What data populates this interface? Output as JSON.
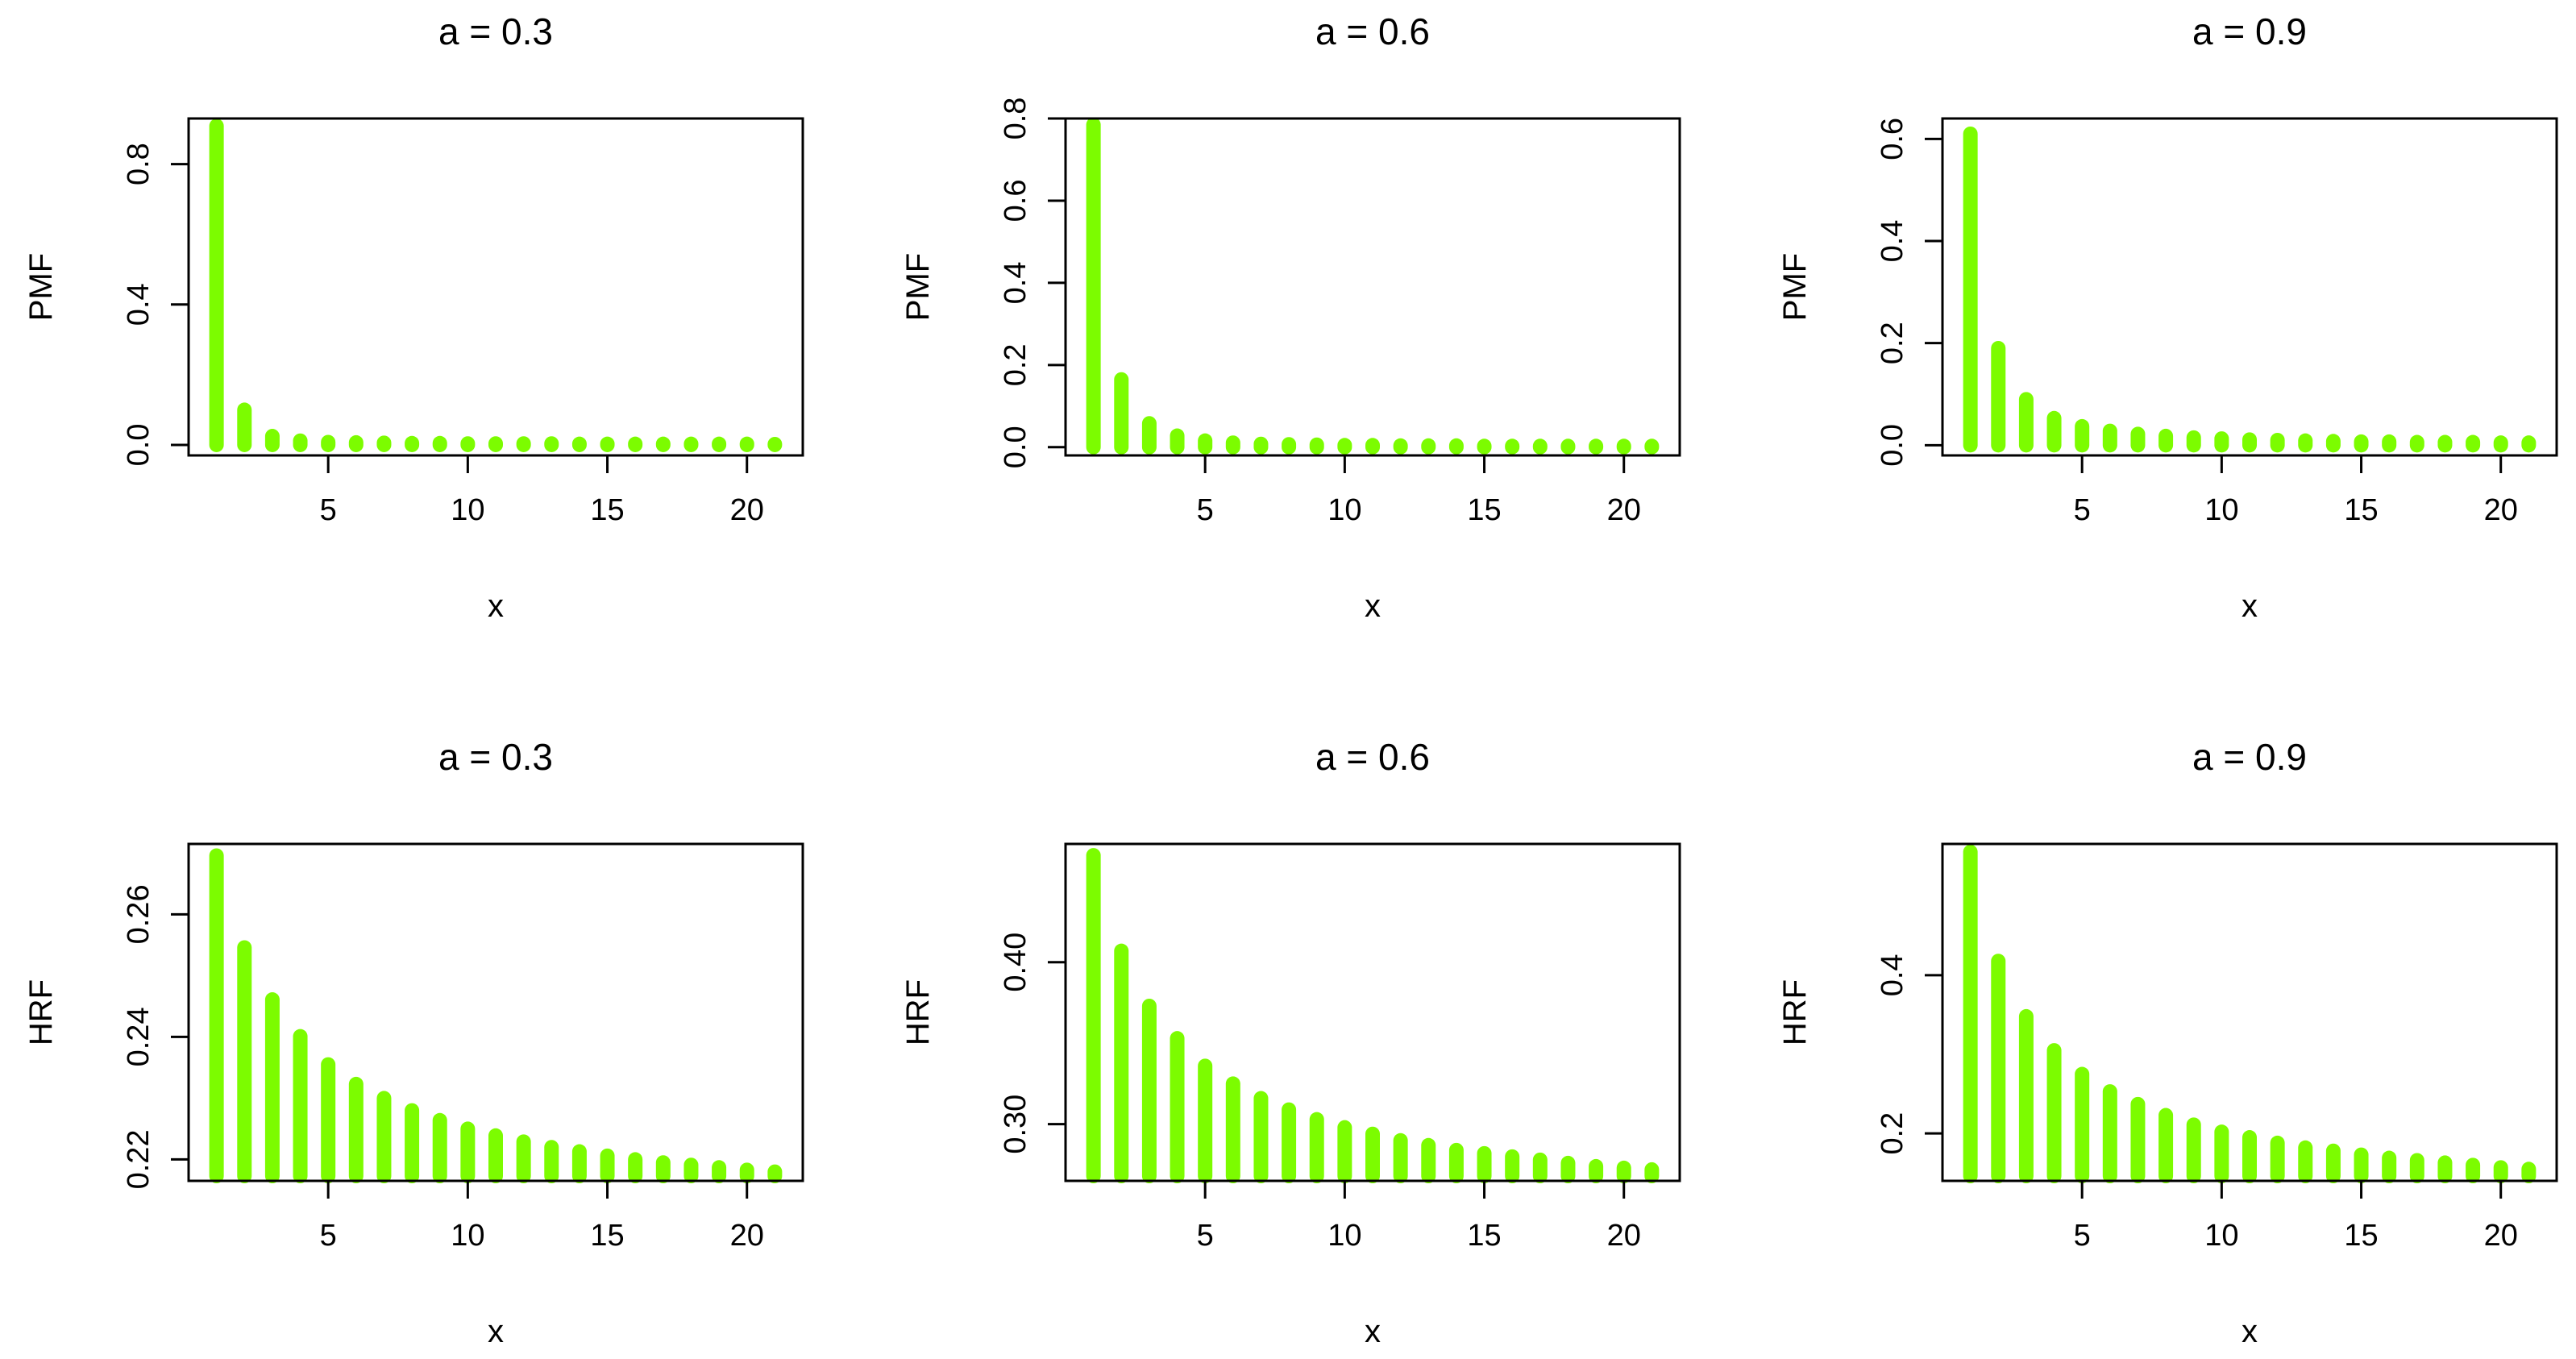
{
  "style": {
    "bar_color": "#7cfc00",
    "axis_color": "#000000",
    "background": "#ffffff"
  },
  "chart_data": [
    {
      "type": "bar",
      "title": "a = 0.3",
      "xlabel": "x",
      "ylabel": "PMF",
      "x": [
        1,
        2,
        3,
        4,
        5,
        6,
        7,
        8,
        9,
        10,
        11,
        12,
        13,
        14,
        15,
        16,
        17,
        18,
        19,
        20,
        21
      ],
      "values": [
        0.909,
        0.1,
        0.025,
        0.012,
        0.008,
        0.007,
        0.006,
        0.005,
        0.005,
        0.004,
        0.004,
        0.004,
        0.004,
        0.003,
        0.003,
        0.003,
        0.003,
        0.003,
        0.003,
        0.003,
        0.002
      ],
      "xticks": [
        5,
        10,
        15,
        20
      ],
      "yticks": [
        0.0,
        0.4,
        0.8
      ],
      "ytick_labels": [
        "0.0",
        "0.4",
        "0.8"
      ],
      "xlim": [
        0,
        22
      ],
      "ylim": [
        -0.03,
        0.93
      ]
    },
    {
      "type": "bar",
      "title": "a = 0.6",
      "xlabel": "x",
      "ylabel": "PMF",
      "x": [
        1,
        2,
        3,
        4,
        5,
        6,
        7,
        8,
        9,
        10,
        11,
        12,
        13,
        14,
        15,
        16,
        17,
        18,
        19,
        20,
        21
      ],
      "values": [
        0.785,
        0.165,
        0.058,
        0.028,
        0.016,
        0.011,
        0.008,
        0.007,
        0.006,
        0.005,
        0.005,
        0.004,
        0.004,
        0.004,
        0.003,
        0.003,
        0.003,
        0.003,
        0.003,
        0.003,
        0.003
      ],
      "xticks": [
        5,
        10,
        15,
        20
      ],
      "yticks": [
        0.0,
        0.2,
        0.4,
        0.6,
        0.8
      ],
      "ytick_labels": [
        "0.0",
        "0.2",
        "0.4",
        "0.6",
        "0.8"
      ],
      "xlim": [
        0,
        22
      ],
      "ylim": [
        -0.02,
        0.8
      ]
    },
    {
      "type": "bar",
      "title": "a = 0.9",
      "xlabel": "x",
      "ylabel": "PMF",
      "x": [
        1,
        2,
        3,
        4,
        5,
        6,
        7,
        8,
        9,
        10,
        11,
        12,
        13,
        14,
        15,
        16,
        17,
        18,
        19,
        20,
        21
      ],
      "values": [
        0.61,
        0.19,
        0.09,
        0.053,
        0.037,
        0.028,
        0.022,
        0.018,
        0.015,
        0.013,
        0.011,
        0.01,
        0.009,
        0.008,
        0.007,
        0.007,
        0.006,
        0.006,
        0.006,
        0.005,
        0.005
      ],
      "xticks": [
        5,
        10,
        15,
        20
      ],
      "yticks": [
        0.0,
        0.2,
        0.4,
        0.6
      ],
      "ytick_labels": [
        "0.0",
        "0.2",
        "0.4",
        "0.6"
      ],
      "xlim": [
        0,
        22
      ],
      "ylim": [
        -0.02,
        0.64
      ]
    },
    {
      "type": "bar",
      "title": "a = 0.3",
      "xlabel": "x",
      "ylabel": "HRF",
      "x": [
        1,
        2,
        3,
        4,
        5,
        6,
        7,
        8,
        9,
        10,
        11,
        12,
        13,
        14,
        15,
        16,
        17,
        18,
        19,
        20,
        21
      ],
      "values": [
        0.2696,
        0.2546,
        0.2461,
        0.2401,
        0.2355,
        0.2323,
        0.23,
        0.228,
        0.2264,
        0.225,
        0.2239,
        0.2229,
        0.222,
        0.2213,
        0.2206,
        0.22,
        0.2195,
        0.2191,
        0.2187,
        0.2183,
        0.218
      ],
      "xticks": [
        5,
        10,
        15,
        20
      ],
      "yticks": [
        0.22,
        0.24,
        0.26
      ],
      "ytick_labels": [
        "0.22",
        "0.24",
        "0.26"
      ],
      "xlim": [
        0,
        22
      ],
      "ylim": [
        0.2165,
        0.2715
      ]
    },
    {
      "type": "bar",
      "title": "a = 0.6",
      "xlabel": "x",
      "ylabel": "HRF",
      "x": [
        1,
        2,
        3,
        4,
        5,
        6,
        7,
        8,
        9,
        10,
        11,
        12,
        13,
        14,
        15,
        16,
        17,
        18,
        19,
        20,
        21
      ],
      "values": [
        0.466,
        0.407,
        0.373,
        0.353,
        0.336,
        0.325,
        0.316,
        0.309,
        0.303,
        0.298,
        0.294,
        0.29,
        0.287,
        0.284,
        0.282,
        0.28,
        0.278,
        0.276,
        0.274,
        0.273,
        0.272
      ],
      "xticks": [
        5,
        10,
        15,
        20
      ],
      "yticks": [
        0.3,
        0.4
      ],
      "ytick_labels": [
        "0.30",
        "0.40"
      ],
      "xlim": [
        0,
        22
      ],
      "ylim": [
        0.265,
        0.473
      ]
    },
    {
      "type": "bar",
      "title": "a = 0.9",
      "xlabel": "x",
      "ylabel": "HRF",
      "x": [
        1,
        2,
        3,
        4,
        5,
        6,
        7,
        8,
        9,
        10,
        11,
        12,
        13,
        14,
        15,
        16,
        17,
        18,
        19,
        20,
        21
      ],
      "values": [
        0.556,
        0.418,
        0.348,
        0.305,
        0.275,
        0.253,
        0.237,
        0.223,
        0.211,
        0.202,
        0.195,
        0.188,
        0.182,
        0.178,
        0.173,
        0.169,
        0.166,
        0.163,
        0.16,
        0.157,
        0.155
      ],
      "xticks": [
        5,
        10,
        15,
        20
      ],
      "yticks": [
        0.2,
        0.4
      ],
      "ytick_labels": [
        "0.2",
        "0.4"
      ],
      "xlim": [
        0,
        22
      ],
      "ylim": [
        0.14,
        0.566
      ]
    }
  ]
}
